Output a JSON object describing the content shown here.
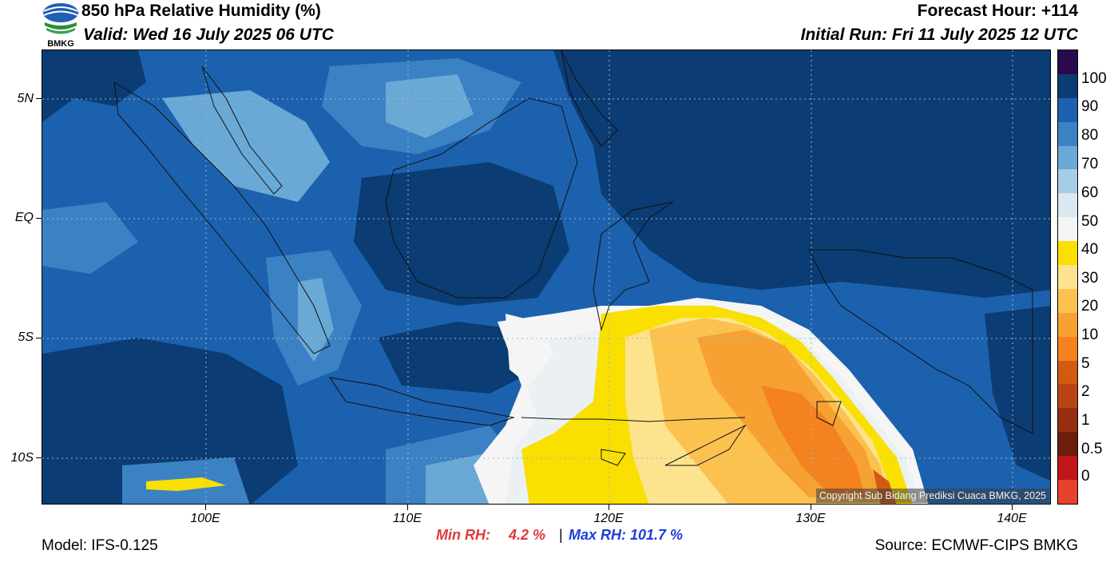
{
  "header": {
    "title": "850 hPa Relative Humidity (%)",
    "valid": "Valid: Wed 16 July 2025 06 UTC",
    "forecast_hour": "Forecast Hour: +114",
    "initial_run": "Initial Run: Fri 11 July 2025 12 UTC",
    "logo_text": "BMKG"
  },
  "map": {
    "lat_labels": [
      "5N",
      "EQ",
      "5S",
      "10S"
    ],
    "lon_labels": [
      "100E",
      "110E",
      "120E",
      "130E",
      "140E"
    ],
    "copyright": "Copyright Sub Bidang Prediksi Cuaca BMKG, 2025"
  },
  "colorbar": {
    "labels": [
      "100",
      "90",
      "80",
      "70",
      "60",
      "50",
      "40",
      "30",
      "20",
      "10",
      "5",
      "2",
      "1",
      "0.5",
      "0"
    ],
    "colors": [
      "#2a0a4e",
      "#0b3c73",
      "#1c61ad",
      "#3b82c4",
      "#6aa8d6",
      "#a7cde6",
      "#dae8f2",
      "#f5f5f5",
      "#f9e000",
      "#fde38e",
      "#fcc24f",
      "#f6a132",
      "#f3821f",
      "#d35a12",
      "#b84414",
      "#96300e",
      "#6b1f0a",
      "#c0171a",
      "#e8412c"
    ]
  },
  "stats": {
    "min_label": "Min RH:",
    "min_value": "4.2 %",
    "separator": "|",
    "max_label": "Max RH: 101.7 %"
  },
  "footer": {
    "model": "Model: IFS-0.125",
    "source": "Source: ECMWF-CIPS BMKG"
  }
}
